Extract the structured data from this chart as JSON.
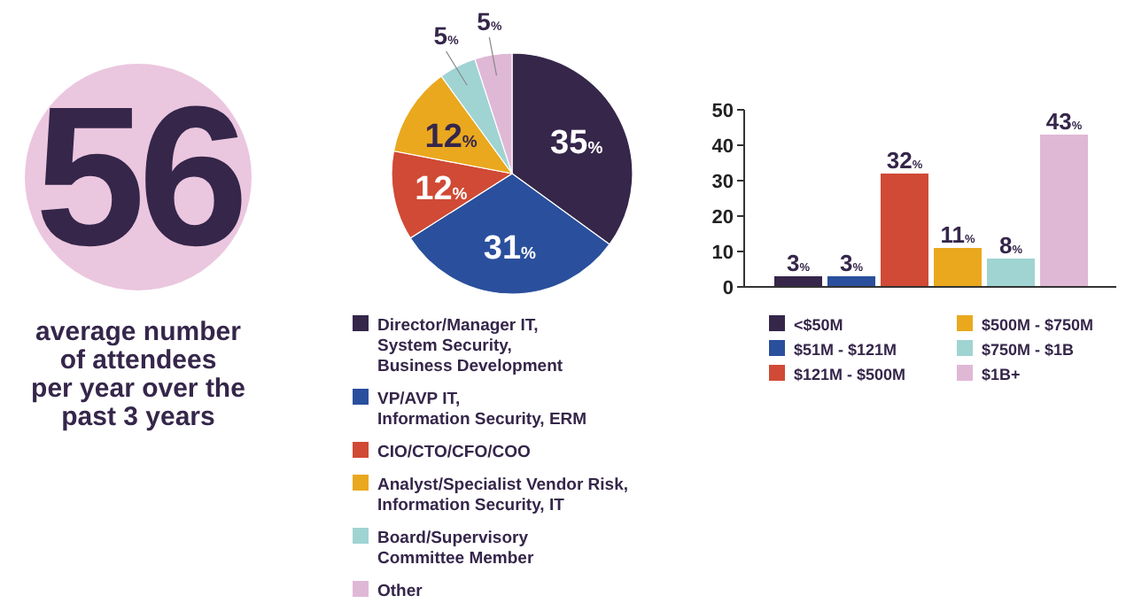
{
  "chart_data": [
    {
      "type": "other",
      "title": "56",
      "subtitle": "average number\nof attendees\nper year over the\npast 3 years"
    },
    {
      "type": "pie",
      "categories": [
        "Director/Manager IT,\nSystem Security,\nBusiness Development",
        "VP/AVP IT,\nInformation Security, ERM",
        "CIO/CTO/CFO/COO",
        "Analyst/Specialist Vendor Risk,\nInformation Security, IT",
        "Board/Supervisory\nCommittee Member",
        "Other"
      ],
      "values": [
        35,
        31,
        12,
        12,
        5,
        5
      ],
      "value_labels": [
        "35%",
        "31%",
        "12%",
        "12%",
        "5%",
        "5%"
      ],
      "colors": [
        "#35264a",
        "#2a4f9c",
        "#d04a35",
        "#eaa81e",
        "#9fd4d3",
        "#dfb8d6"
      ],
      "legend": "bottom"
    },
    {
      "type": "bar",
      "categories": [
        null,
        null,
        null,
        null,
        null,
        null
      ],
      "stacked": true,
      "series": [
        {
          "name": "<$50M",
          "color": "#35264a",
          "values": [
            3,
            null,
            null,
            null,
            null,
            null
          ],
          "value_labels": [
            "3%",
            null,
            null,
            null,
            null,
            null
          ]
        },
        {
          "name": "$51M - $121M",
          "color": "#2a4f9c",
          "values": [
            null,
            3,
            null,
            null,
            null,
            null
          ],
          "value_labels": [
            null,
            "3%",
            null,
            null,
            null,
            null
          ]
        },
        {
          "name": "$121M - $500M",
          "color": "#d04a35",
          "values": [
            null,
            null,
            32,
            null,
            null,
            null
          ],
          "value_labels": [
            null,
            null,
            "32%",
            null,
            null,
            null
          ]
        },
        {
          "name": "$500M - $750M",
          "color": "#eaa81e",
          "values": [
            null,
            null,
            null,
            11,
            null,
            null
          ],
          "value_labels": [
            null,
            null,
            null,
            "11%",
            null,
            null
          ]
        },
        {
          "name": "$750M - $1B",
          "color": "#9fd4d3",
          "values": [
            null,
            null,
            null,
            null,
            8,
            null
          ],
          "value_labels": [
            null,
            null,
            null,
            null,
            "8%",
            null
          ]
        },
        {
          "name": "$1B+",
          "color": "#dfb8d6",
          "values": [
            null,
            null,
            null,
            null,
            null,
            43
          ],
          "value_labels": [
            null,
            null,
            null,
            null,
            null,
            "43%"
          ]
        }
      ],
      "ylim": [
        0,
        50
      ],
      "yticks": [
        0,
        10,
        20,
        30,
        40,
        50
      ],
      "tick_labels": "y",
      "legend": "bottom"
    }
  ]
}
